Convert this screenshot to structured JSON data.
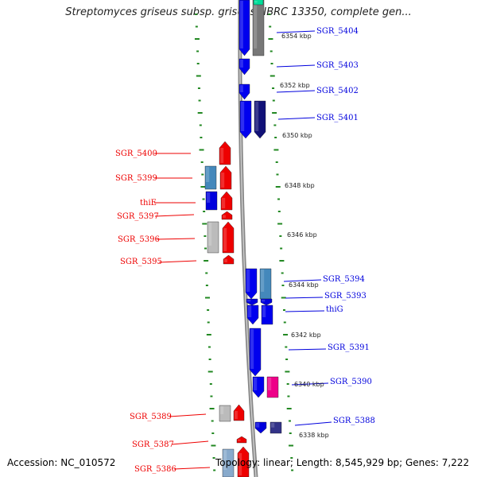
{
  "title": "Streptomyces griseus subsp. griseus NBRC 13350, complete gen...",
  "accession": "Accession: NC_010572",
  "stats": "Topology: linear; Length: 8,545,929 bp; Genes: 7,222",
  "colors": {
    "forward_strand": "#ee0000",
    "reverse_strand": "#0000dd",
    "backbone": "#999999",
    "ticks": "#228822"
  },
  "ticks": [
    {
      "label": "6354 kbp"
    },
    {
      "label": "6352 kbp"
    },
    {
      "label": "6350 kbp"
    },
    {
      "label": "6348 kbp"
    },
    {
      "label": "6346 kbp"
    },
    {
      "label": "6344 kbp"
    },
    {
      "label": "6342 kbp"
    },
    {
      "label": "6340 kbp"
    },
    {
      "label": "6338 kbp"
    }
  ],
  "gene_labels": [
    {
      "text": "SGR_5404",
      "strand": "reverse"
    },
    {
      "text": "SGR_5403",
      "strand": "reverse"
    },
    {
      "text": "SGR_5402",
      "strand": "reverse"
    },
    {
      "text": "SGR_5401",
      "strand": "reverse"
    },
    {
      "text": "SGR_5400",
      "strand": "forward"
    },
    {
      "text": "SGR_5399",
      "strand": "forward"
    },
    {
      "text": "thiE",
      "strand": "forward"
    },
    {
      "text": "SGR_5397",
      "strand": "forward"
    },
    {
      "text": "SGR_5396",
      "strand": "forward"
    },
    {
      "text": "SGR_5395",
      "strand": "forward"
    },
    {
      "text": "SGR_5394",
      "strand": "reverse"
    },
    {
      "text": "SGR_5393",
      "strand": "reverse"
    },
    {
      "text": "thiG",
      "strand": "reverse"
    },
    {
      "text": "SGR_5391",
      "strand": "reverse"
    },
    {
      "text": "SGR_5390",
      "strand": "reverse"
    },
    {
      "text": "SGR_5389",
      "strand": "forward"
    },
    {
      "text": "SGR_5388",
      "strand": "reverse"
    },
    {
      "text": "SGR_5387",
      "strand": "forward"
    },
    {
      "text": "SGR_5386",
      "strand": "forward"
    }
  ]
}
